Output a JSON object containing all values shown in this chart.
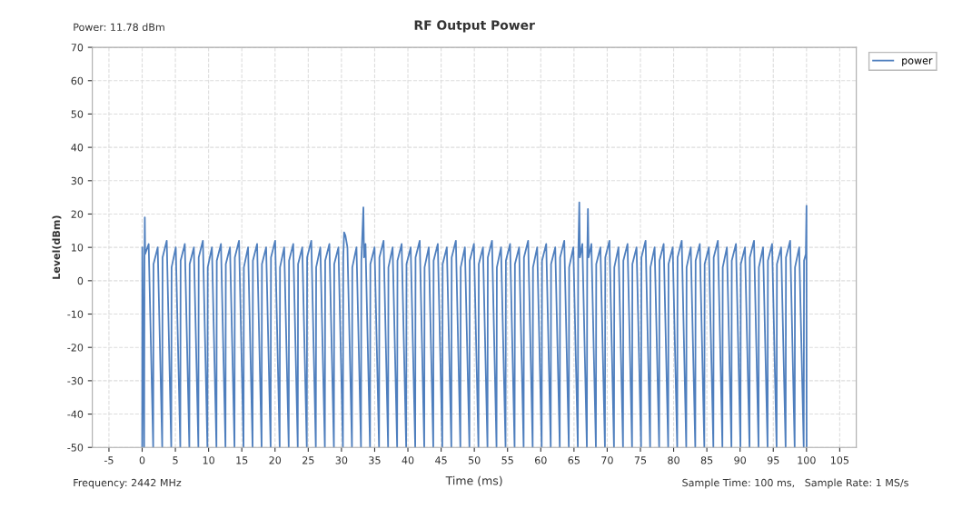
{
  "chart_data": {
    "type": "line",
    "title": "RF Output Power",
    "xlabel": "Time (ms)",
    "ylabel": "Level(dBm)",
    "annotations": [
      "Power: 11.78 dBm",
      "Frequency: 2442 MHz",
      "Sample Time: 100 ms,   Sample Rate: 1 MS/s"
    ],
    "xlim": [
      -7.5,
      107.5
    ],
    "xticks": [
      -5,
      0,
      5,
      10,
      15,
      20,
      25,
      30,
      35,
      40,
      45,
      50,
      55,
      60,
      65,
      70,
      75,
      80,
      85,
      90,
      95,
      100,
      105
    ],
    "ylim": [
      -50,
      70
    ],
    "yticks": [
      -50,
      -40,
      -30,
      -20,
      -10,
      0,
      10,
      20,
      30,
      40,
      50,
      60,
      70
    ],
    "grid": true,
    "legend": "top right",
    "marker": "none",
    "line_style": "solid",
    "series": [
      {
        "name": "power",
        "color": "#4f7fbe",
        "x": [
          0,
          0.02,
          0.3,
          0.35,
          0.4,
          0.45,
          0.98,
          1.66,
          1.71,
          2.34,
          3.02,
          3.07,
          3.7,
          4.38,
          4.43,
          5.06,
          5.74,
          5.79,
          6.42,
          7.1,
          7.15,
          7.78,
          8.46,
          8.51,
          9.14,
          9.82,
          9.87,
          10.5,
          11.18,
          11.23,
          11.86,
          12.54,
          12.59,
          13.22,
          13.9,
          13.95,
          14.58,
          15.26,
          15.31,
          15.94,
          16.62,
          16.67,
          17.3,
          17.98,
          18.03,
          18.66,
          19.34,
          19.39,
          20.02,
          20.7,
          20.75,
          21.38,
          22.06,
          22.11,
          22.74,
          23.42,
          23.47,
          24.1,
          24.78,
          24.83,
          25.46,
          26.14,
          26.19,
          26.82,
          27.5,
          27.55,
          28.18,
          28.86,
          28.91,
          29.54,
          30.22,
          30.27,
          30.4,
          30.6,
          30.9,
          31.58,
          31.63,
          32.26,
          32.94,
          32.99,
          33.3,
          33.4,
          33.62,
          34.3,
          34.35,
          34.98,
          35.66,
          35.71,
          36.34,
          37.02,
          37.07,
          37.7,
          38.38,
          38.43,
          39.06,
          39.74,
          39.79,
          40.42,
          41.1,
          41.15,
          41.78,
          42.46,
          42.51,
          43.14,
          43.82,
          43.87,
          44.5,
          45.18,
          45.23,
          45.86,
          46.54,
          46.59,
          47.22,
          47.9,
          47.95,
          48.58,
          49.26,
          49.31,
          49.94,
          50.62,
          50.67,
          51.3,
          51.98,
          52.03,
          52.66,
          53.34,
          53.39,
          54.02,
          54.7,
          54.75,
          55.38,
          56.06,
          56.11,
          56.74,
          57.42,
          57.47,
          58.1,
          58.78,
          58.83,
          59.46,
          60.14,
          60.19,
          60.82,
          61.5,
          61.55,
          62.18,
          62.86,
          62.91,
          63.54,
          64.22,
          64.27,
          64.9,
          65.58,
          65.63,
          65.8,
          65.9,
          66.26,
          66.94,
          66.99,
          67.1,
          67.2,
          67.62,
          68.3,
          68.35,
          68.98,
          69.66,
          69.71,
          70.34,
          71.02,
          71.07,
          71.7,
          72.38,
          72.43,
          73.06,
          73.74,
          73.79,
          74.42,
          75.1,
          75.15,
          75.78,
          76.46,
          76.51,
          77.14,
          77.82,
          77.87,
          78.5,
          79.18,
          79.23,
          79.86,
          80.54,
          80.59,
          81.22,
          81.9,
          81.95,
          82.58,
          83.26,
          83.31,
          83.94,
          84.62,
          84.67,
          85.3,
          85.98,
          86.03,
          86.66,
          87.34,
          87.39,
          88.02,
          88.7,
          88.75,
          89.38,
          90.06,
          90.11,
          90.74,
          91.42,
          91.47,
          92.1,
          92.78,
          92.83,
          93.46,
          94.14,
          94.19,
          94.82,
          95.5,
          95.55,
          96.18,
          96.86,
          96.91,
          97.54,
          98.22,
          98.27,
          98.9,
          99.58,
          99.63,
          99.9,
          100,
          100.02
        ],
        "values": [
          -50,
          10,
          -50,
          6,
          19,
          8,
          11,
          -50,
          5,
          10,
          -50,
          7,
          12,
          -50,
          4,
          10,
          -50,
          6,
          11,
          -50,
          5,
          10,
          -50,
          7,
          12,
          -50,
          4,
          10,
          -50,
          6,
          11,
          -50,
          5,
          10,
          -50,
          7,
          12,
          -50,
          4,
          10,
          -50,
          6,
          11,
          -50,
          5,
          10,
          -50,
          7,
          12,
          -50,
          4,
          10,
          -50,
          6,
          11,
          -50,
          5,
          10,
          -50,
          7,
          12,
          -50,
          4,
          10,
          -50,
          6,
          11,
          -50,
          5,
          10,
          -50,
          7,
          14.5,
          13.5,
          10,
          -50,
          4,
          10,
          -50,
          6,
          22,
          7,
          11,
          -50,
          5,
          10,
          -50,
          7,
          12,
          -50,
          4,
          10,
          -50,
          6,
          11,
          -50,
          5,
          10,
          -50,
          7,
          12,
          -50,
          4,
          10,
          -50,
          6,
          11,
          -50,
          5,
          10,
          -50,
          7,
          12,
          -50,
          4,
          10,
          -50,
          6,
          11,
          -50,
          5,
          10,
          -50,
          7,
          12,
          -50,
          4,
          10,
          -50,
          6,
          11,
          -50,
          5,
          10,
          -50,
          7,
          12,
          -50,
          4,
          10,
          -50,
          6,
          11,
          -50,
          5,
          10,
          -50,
          7,
          12,
          -50,
          4,
          10,
          -50,
          6,
          23.5,
          7,
          11,
          -50,
          6,
          21.5,
          7,
          11,
          -50,
          5,
          10,
          -50,
          7,
          12,
          -50,
          4,
          10,
          -50,
          6,
          11,
          -50,
          5,
          10,
          -50,
          7,
          12,
          -50,
          4,
          10,
          -50,
          6,
          11,
          -50,
          5,
          10,
          -50,
          7,
          12,
          -50,
          4,
          10,
          -50,
          6,
          11,
          -50,
          5,
          10,
          -50,
          7,
          12,
          -50,
          4,
          10,
          -50,
          6,
          11,
          -50,
          5,
          10,
          -50,
          7,
          12,
          -50,
          4,
          10,
          -50,
          6,
          11,
          -50,
          5,
          10,
          -50,
          7,
          12,
          -50,
          4,
          10,
          -50,
          6,
          8,
          22.5,
          -50
        ]
      }
    ]
  }
}
